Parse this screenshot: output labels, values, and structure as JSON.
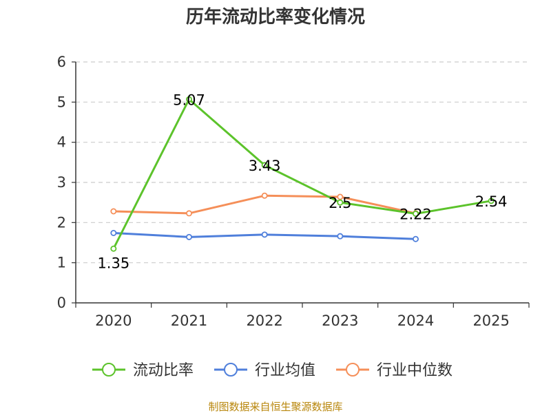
{
  "chart_data": {
    "type": "line",
    "title": "历年流动比率变化情况",
    "categories": [
      "2020",
      "2021",
      "2022",
      "2023",
      "2024",
      "2025"
    ],
    "ylim": [
      0,
      6
    ],
    "yticks": [
      0,
      1,
      2,
      3,
      4,
      5,
      6
    ],
    "grid": true,
    "legend_position": "bottom",
    "series": [
      {
        "name": "流动比率",
        "color": "#5cc32b",
        "values": [
          1.35,
          5.07,
          3.43,
          2.5,
          2.22,
          2.54
        ],
        "labels": [
          "1.35",
          "5.07",
          "3.43",
          "2.5",
          "2.22",
          "2.54"
        ]
      },
      {
        "name": "行业均值",
        "color": "#4f7fdb",
        "values": [
          1.74,
          1.64,
          1.7,
          1.66,
          1.59,
          null
        ]
      },
      {
        "name": "行业中位数",
        "color": "#f58f59",
        "values": [
          2.28,
          2.23,
          2.67,
          2.64,
          2.23,
          null
        ]
      }
    ],
    "source": "制图数据来自恒生聚源数据库"
  }
}
